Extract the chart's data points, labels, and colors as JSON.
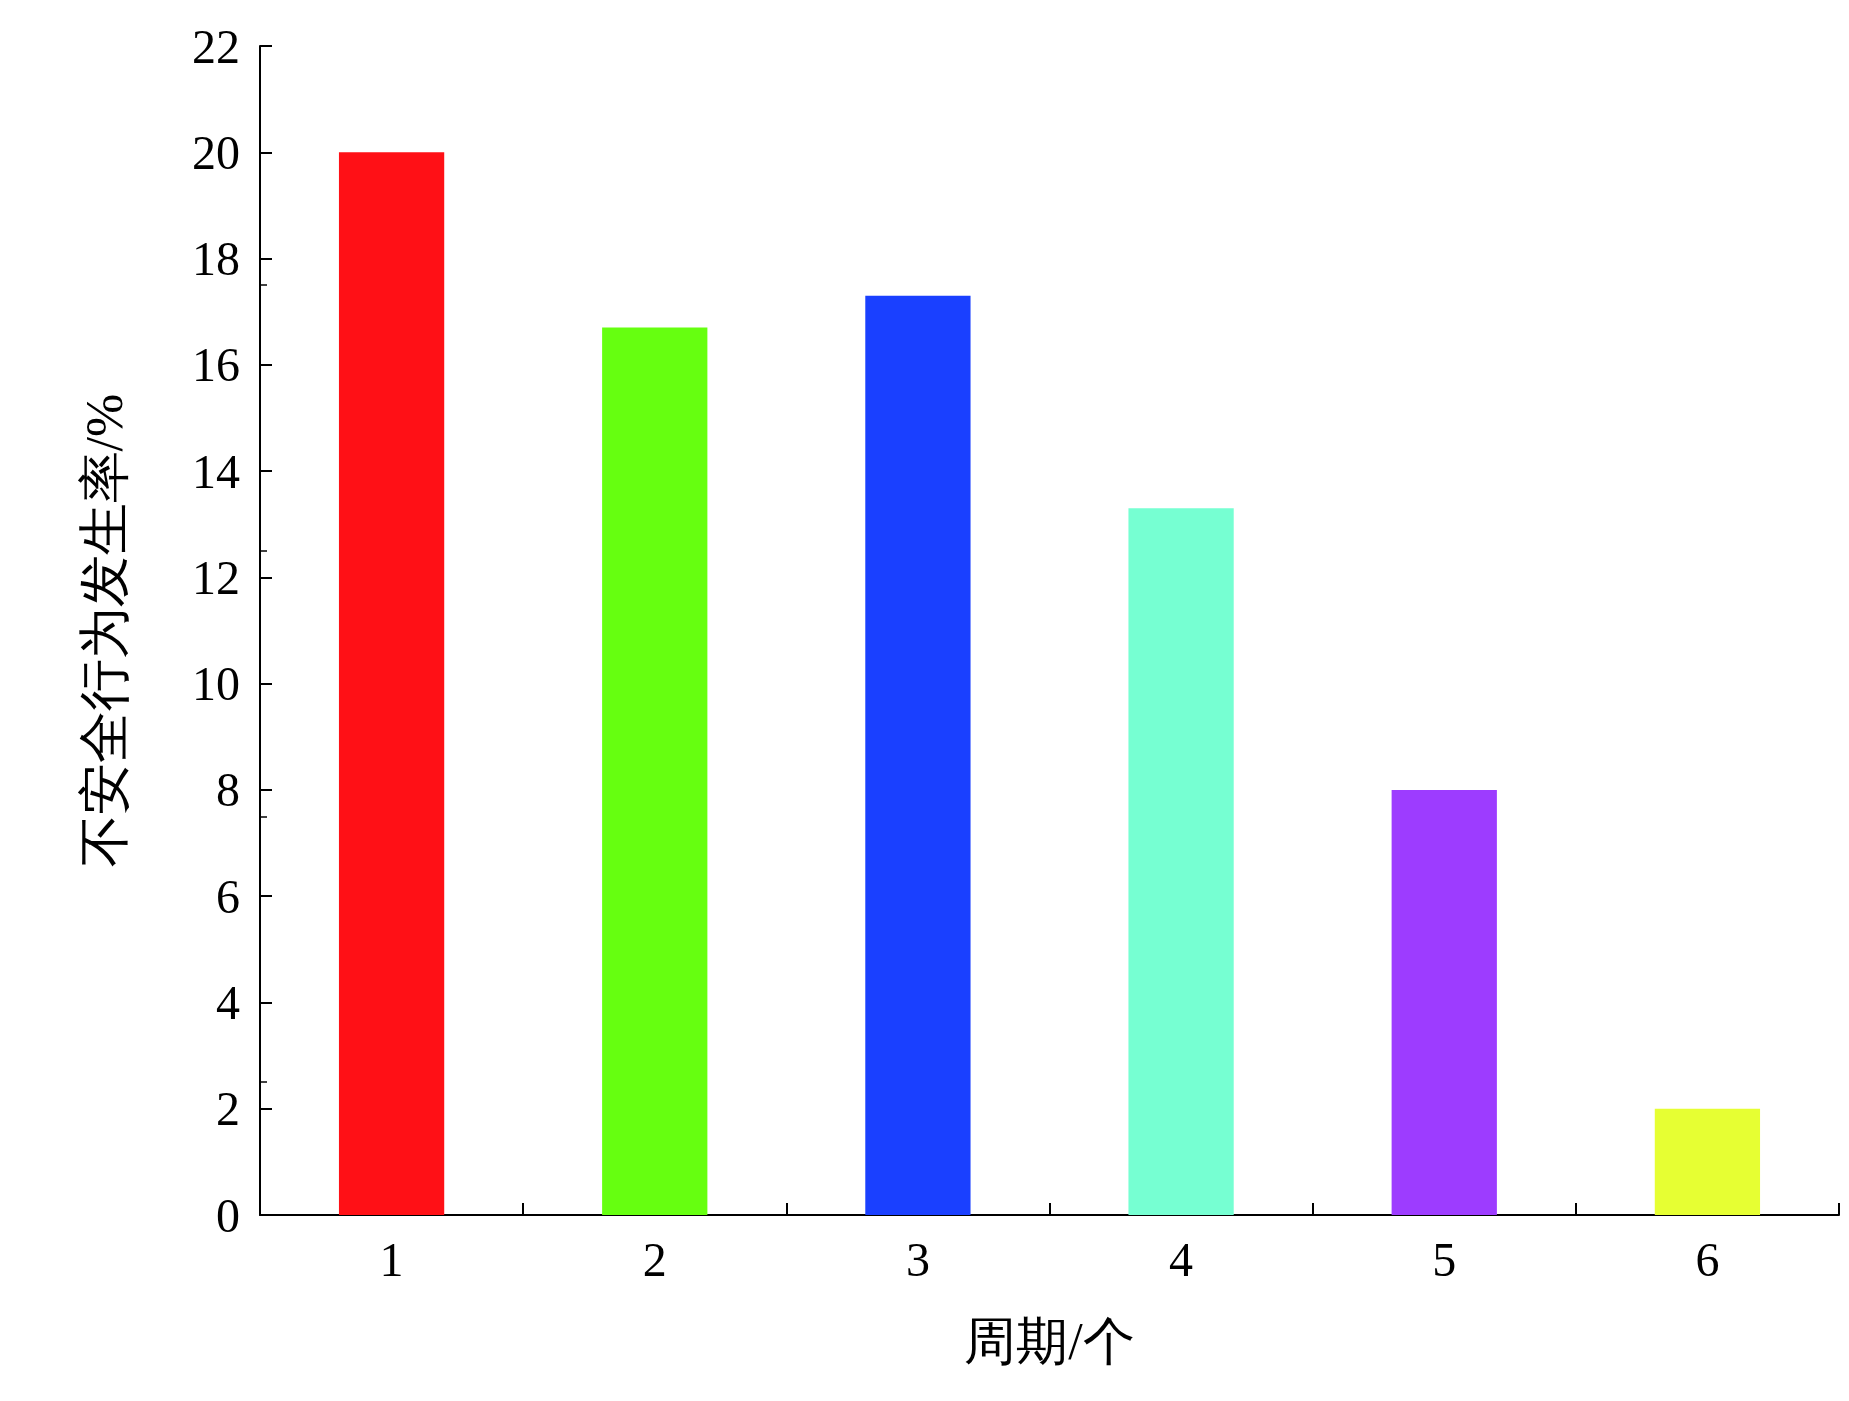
{
  "chart_data": {
    "type": "bar",
    "xlabel": "周期/个",
    "ylabel": "不安全行为发生率/%",
    "categories": [
      "1",
      "2",
      "3",
      "4",
      "5",
      "6"
    ],
    "values": [
      20,
      16.7,
      17.3,
      13.3,
      8,
      2
    ],
    "colors": [
      "#ff1016",
      "#66ff10",
      "#1a40ff",
      "#76ffd2",
      "#9d3cff",
      "#e6ff33"
    ],
    "ylim": [
      0,
      22
    ],
    "yticks": [
      0,
      2,
      4,
      6,
      8,
      10,
      12,
      14,
      16,
      18,
      20,
      22
    ],
    "grid": false
  }
}
